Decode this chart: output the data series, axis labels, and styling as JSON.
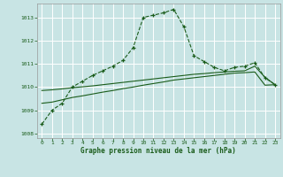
{
  "title": "Graphe pression niveau de la mer (hPa)",
  "background_color": "#c8e4e4",
  "plot_bg_color": "#c8e4e4",
  "grid_color": "#ffffff",
  "line_color_main": "#1a5c1a",
  "xlim": [
    -0.5,
    23.5
  ],
  "ylim": [
    1007.8,
    1013.6
  ],
  "yticks": [
    1008,
    1009,
    1010,
    1011,
    1012,
    1013
  ],
  "xticks": [
    0,
    1,
    2,
    3,
    4,
    5,
    6,
    7,
    8,
    9,
    10,
    11,
    12,
    13,
    14,
    15,
    16,
    17,
    18,
    19,
    20,
    21,
    22,
    23
  ],
  "series1": [
    1008.4,
    1009.0,
    1009.3,
    1010.0,
    1010.25,
    1010.5,
    1010.7,
    1010.9,
    1011.15,
    1011.7,
    1013.0,
    1013.1,
    1013.2,
    1013.35,
    1012.6,
    1011.35,
    1011.1,
    1010.85,
    1010.7,
    1010.85,
    1010.9,
    1011.05,
    1010.4,
    1010.1
  ],
  "series2": [
    1009.3,
    1009.35,
    1009.45,
    1009.55,
    1009.62,
    1009.7,
    1009.78,
    1009.85,
    1009.93,
    1010.0,
    1010.08,
    1010.15,
    1010.22,
    1010.3,
    1010.35,
    1010.4,
    1010.45,
    1010.5,
    1010.55,
    1010.6,
    1010.62,
    1010.65,
    1010.08,
    1010.1
  ],
  "series3": [
    1009.85,
    1009.88,
    1009.92,
    1009.97,
    1010.01,
    1010.05,
    1010.1,
    1010.15,
    1010.2,
    1010.25,
    1010.3,
    1010.35,
    1010.4,
    1010.45,
    1010.5,
    1010.55,
    1010.58,
    1010.62,
    1010.65,
    1010.68,
    1010.7,
    1010.9,
    1010.42,
    1010.1
  ]
}
